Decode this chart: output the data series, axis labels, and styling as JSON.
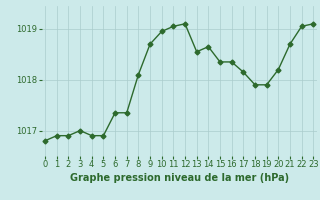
{
  "x": [
    0,
    1,
    2,
    3,
    4,
    5,
    6,
    7,
    8,
    9,
    10,
    11,
    12,
    13,
    14,
    15,
    16,
    17,
    18,
    19,
    20,
    21,
    22,
    23
  ],
  "y": [
    1016.8,
    1016.9,
    1016.9,
    1017.0,
    1016.9,
    1016.9,
    1017.35,
    1017.35,
    1018.1,
    1018.7,
    1018.95,
    1019.05,
    1019.1,
    1018.55,
    1018.65,
    1018.35,
    1018.35,
    1018.15,
    1017.9,
    1017.9,
    1018.2,
    1018.7,
    1019.05,
    1019.1
  ],
  "line_color": "#2d6a2d",
  "marker": "D",
  "marker_size": 2.5,
  "line_width": 1.0,
  "bg_color": "#cceaea",
  "grid_color": "#aacccc",
  "xlabel": "Graphe pression niveau de la mer (hPa)",
  "xlabel_fontsize": 7,
  "yticks": [
    1017,
    1018,
    1019
  ],
  "ylim": [
    1016.5,
    1019.45
  ],
  "xlim": [
    -0.3,
    23.3
  ],
  "tick_color": "#2d6a2d",
  "tick_fontsize": 6,
  "label_color": "#2d6a2d"
}
